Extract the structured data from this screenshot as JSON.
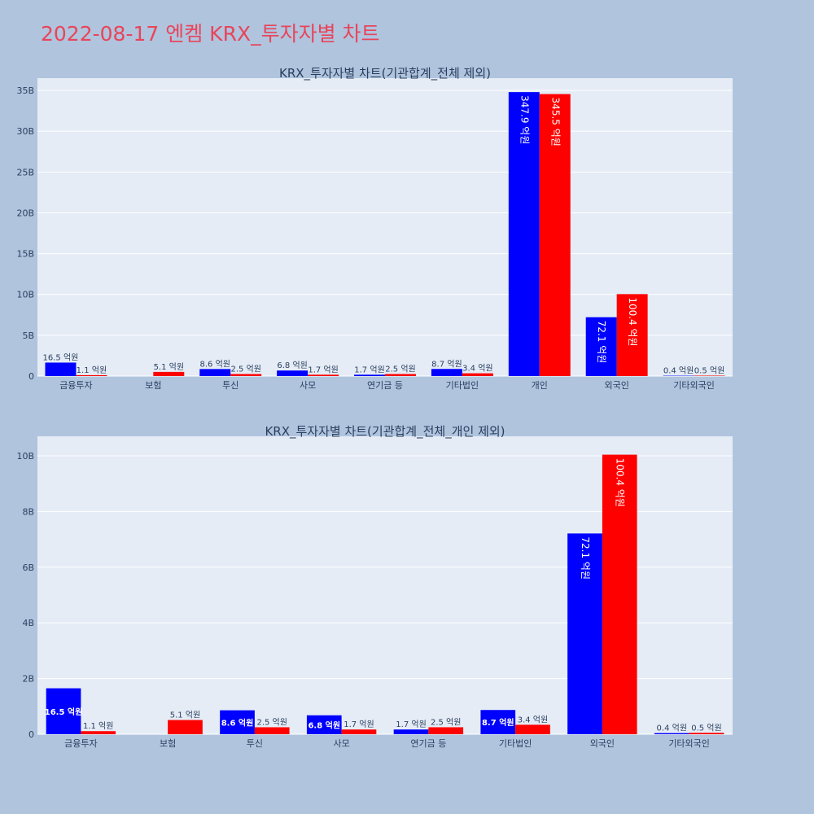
{
  "page": {
    "title": "2022-08-17 엔켐 KRX_투자자별 차트",
    "background": "#b0c4de",
    "title_color": "#e8455a",
    "plot_background": "#e5ecf6",
    "series_colors": [
      "#0000ff",
      "#ff0000"
    ]
  },
  "chart_data": [
    {
      "type": "bar",
      "title": "KRX_투자자별 차트(기관합계_전체 제외)",
      "categories": [
        "금융투자",
        "보험",
        "투신",
        "사모",
        "연기금 등",
        "기타법인",
        "개인",
        "외국인",
        "기타외국인"
      ],
      "series": [
        {
          "values": [
            1650000000,
            0,
            860000000,
            680000000,
            170000000,
            870000000,
            34790000000,
            7210000000,
            40000000
          ],
          "labels": [
            "16.5 억원",
            "",
            "8.6 억원",
            "6.8 억원",
            "1.7 억원",
            "8.7 억원",
            "347.9 억원",
            "72.1 억원",
            "0.4 억원"
          ]
        },
        {
          "values": [
            110000000,
            510000000,
            250000000,
            170000000,
            250000000,
            340000000,
            34550000000,
            10040000000,
            50000000
          ],
          "labels": [
            "1.1 억원",
            "5.1 억원",
            "2.5 억원",
            "1.7 억원",
            "2.5 억원",
            "3.4 억원",
            "345.5 억원",
            "100.4 억원",
            "0.5 억원"
          ]
        }
      ],
      "ylim": [
        0,
        36500000000
      ],
      "yticks": [
        0,
        5000000000,
        10000000000,
        15000000000,
        20000000000,
        25000000000,
        30000000000,
        35000000000
      ],
      "ytick_labels": [
        "0",
        "5B",
        "10B",
        "15B",
        "20B",
        "25B",
        "30B",
        "35B"
      ],
      "grid": true,
      "legend": "none"
    },
    {
      "type": "bar",
      "title": "KRX_투자자별 차트(기관합계_전체_개인 제외)",
      "categories": [
        "금융투자",
        "보험",
        "투신",
        "사모",
        "연기금 등",
        "기타법인",
        "외국인",
        "기타외국인"
      ],
      "series": [
        {
          "values": [
            1650000000,
            0,
            860000000,
            680000000,
            170000000,
            870000000,
            7210000000,
            40000000
          ],
          "labels": [
            "16.5 억원",
            "",
            "8.6 억원",
            "6.8 억원",
            "1.7 억원",
            "8.7 억원",
            "72.1 억원",
            "0.4 억원"
          ]
        },
        {
          "values": [
            110000000,
            510000000,
            250000000,
            170000000,
            250000000,
            340000000,
            10040000000,
            50000000
          ],
          "labels": [
            "1.1 억원",
            "5.1 억원",
            "2.5 억원",
            "1.7 억원",
            "2.5 억원",
            "3.4 억원",
            "100.4 억원",
            "0.5 억원"
          ]
        }
      ],
      "ylim": [
        0,
        10700000000
      ],
      "yticks": [
        0,
        2000000000,
        4000000000,
        6000000000,
        8000000000,
        10000000000
      ],
      "ytick_labels": [
        "0",
        "2B",
        "4B",
        "6B",
        "8B",
        "10B"
      ],
      "grid": true,
      "legend": "none"
    }
  ]
}
